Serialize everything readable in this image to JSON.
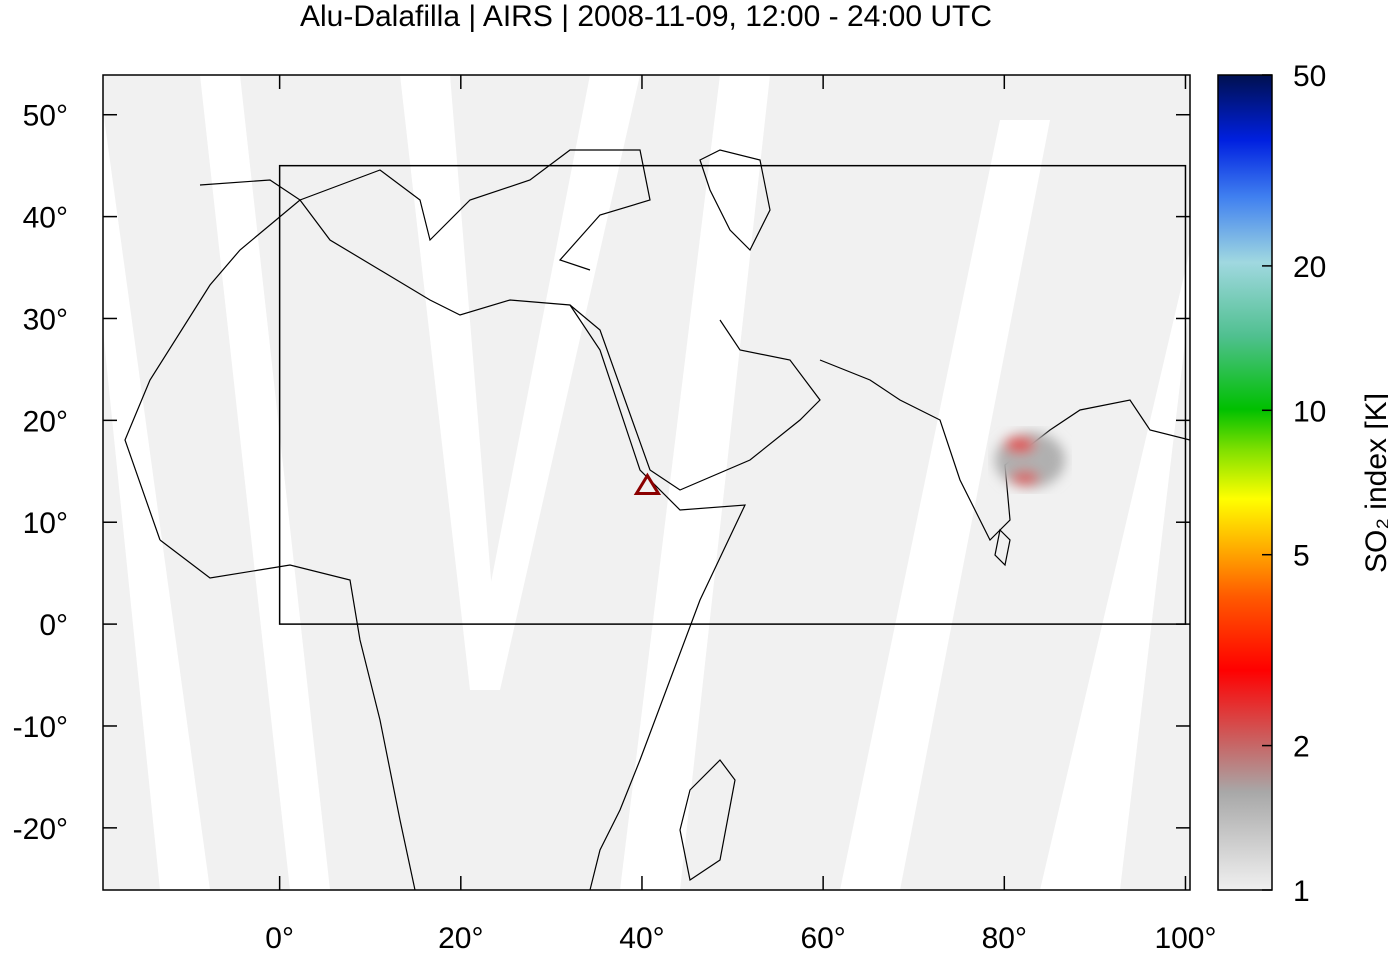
{
  "title": "Alu-Dalafilla | AIRS | 2008-11-09, 12:00 - 24:00 UTC",
  "map": {
    "xlim": [
      -19.5,
      100.5
    ],
    "ylim": [
      -26.1,
      53.9
    ],
    "xticks": [
      {
        "value": 0,
        "label": "0°"
      },
      {
        "value": 20,
        "label": "20°"
      },
      {
        "value": 40,
        "label": "40°"
      },
      {
        "value": 60,
        "label": "60°"
      },
      {
        "value": 80,
        "label": "80°"
      },
      {
        "value": 100,
        "label": "100°"
      }
    ],
    "yticks": [
      {
        "value": -20,
        "label": "-20°"
      },
      {
        "value": -10,
        "label": "-10°"
      },
      {
        "value": 0,
        "label": "0°"
      },
      {
        "value": 10,
        "label": "10°"
      },
      {
        "value": 20,
        "label": "20°"
      },
      {
        "value": 30,
        "label": "30°"
      },
      {
        "value": 40,
        "label": "40°"
      },
      {
        "value": 50,
        "label": "50°"
      }
    ],
    "box": {
      "lon": [
        0,
        100
      ],
      "lat": [
        0,
        45
      ]
    },
    "volcano": {
      "lon": 40.6,
      "lat": 13.6,
      "color": "#8b0000"
    }
  },
  "colorbar": {
    "label": "SO₂ index [K]",
    "scale": "log",
    "lim": [
      1,
      50
    ],
    "ticks": [
      1,
      2,
      5,
      10,
      20,
      50
    ]
  }
}
